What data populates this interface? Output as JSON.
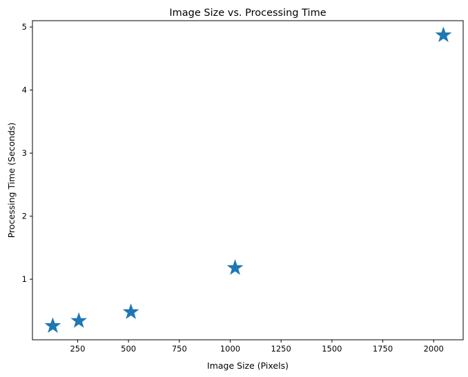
{
  "chart_data": {
    "type": "scatter",
    "title": "Image Size vs. Processing Time",
    "xlabel": "Image Size (Pixels)",
    "ylabel": "Processing Time (Seconds)",
    "xlim": [
      28,
      2145
    ],
    "ylim": [
      0.04,
      5.1
    ],
    "xticks": [
      250,
      500,
      750,
      1000,
      1250,
      1500,
      1750,
      2000
    ],
    "yticks": [
      1,
      2,
      3,
      4,
      5
    ],
    "grid": false,
    "marker": "star",
    "color": "#1f77b4",
    "points": [
      {
        "x": 128,
        "y": 0.26
      },
      {
        "x": 256,
        "y": 0.34
      },
      {
        "x": 512,
        "y": 0.48
      },
      {
        "x": 1024,
        "y": 1.18
      },
      {
        "x": 2048,
        "y": 4.87
      }
    ]
  }
}
